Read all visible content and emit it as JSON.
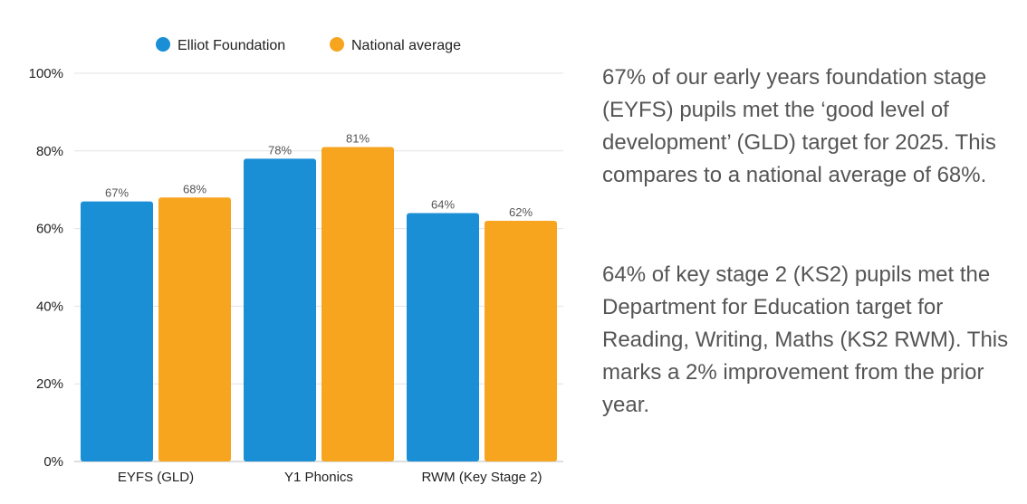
{
  "chart_data": {
    "type": "bar",
    "categories": [
      "EYFS (GLD)",
      "Y1 Phonics",
      "RWM (Key Stage 2)"
    ],
    "series": [
      {
        "name": "Elliot Foundation",
        "color": "#1a8fd6",
        "values": [
          67,
          78,
          64
        ],
        "labels": [
          "67%",
          "78%",
          "64%"
        ]
      },
      {
        "name": "National average",
        "color": "#f7a51f",
        "values": [
          68,
          81,
          62
        ],
        "labels": [
          "68%",
          "81%",
          "62%"
        ]
      }
    ],
    "ylim": [
      0,
      100
    ],
    "yticks": [
      0,
      20,
      40,
      60,
      80,
      100
    ],
    "ytick_labels": [
      "0%",
      "20%",
      "40%",
      "60%",
      "80%",
      "100%"
    ],
    "legend_position": "top",
    "grid": true
  },
  "text": {
    "paragraph_1": "67% of our early years foundation stage (EYFS) pupils met the ‘good level of development’ (GLD) target for 2025. This compares to a national average of 68%.",
    "paragraph_2": "64% of key stage 2 (KS2) pupils met the Department for Education target for Reading, Writing, Maths (KS2 RWM). This marks a 2% improvement from the prior year."
  }
}
